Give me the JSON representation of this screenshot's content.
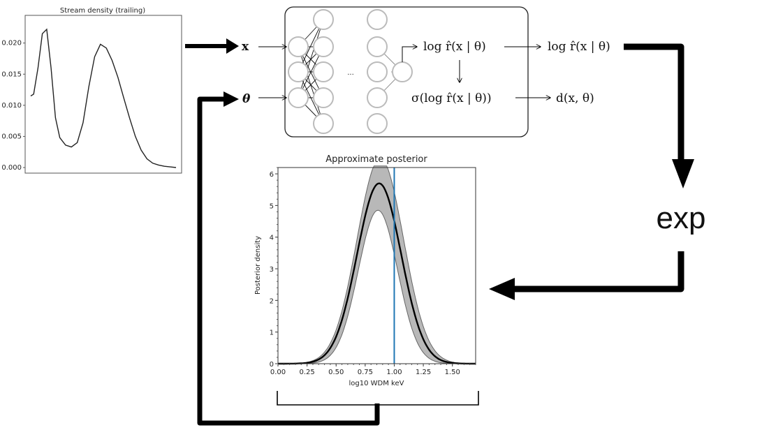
{
  "stream_chart": {
    "type": "line",
    "title": "Stream density (trailing)",
    "ylim": [
      0,
      0.024
    ],
    "ytick_labels": [
      "0.000",
      "0.005",
      "0.010",
      "0.015",
      "0.020"
    ],
    "yticks": [
      0.0,
      0.005,
      0.01,
      0.015,
      0.02
    ],
    "xlim": [
      0,
      1
    ],
    "series": [
      {
        "x": [
          0.0,
          0.02,
          0.05,
          0.08,
          0.11,
          0.14,
          0.17,
          0.2,
          0.24,
          0.28,
          0.32,
          0.36,
          0.4,
          0.44,
          0.48,
          0.52,
          0.56,
          0.6,
          0.64,
          0.68,
          0.72,
          0.76,
          0.8,
          0.84,
          0.88,
          0.92,
          0.96,
          1.0
        ],
        "y": [
          0.0115,
          0.0118,
          0.016,
          0.0215,
          0.0222,
          0.016,
          0.008,
          0.0048,
          0.0036,
          0.0033,
          0.004,
          0.0072,
          0.013,
          0.0178,
          0.0198,
          0.0192,
          0.0172,
          0.0145,
          0.0112,
          0.008,
          0.005,
          0.0028,
          0.0014,
          0.0007,
          0.0004,
          0.0002,
          0.0001,
          0.0
        ]
      }
    ]
  },
  "network": {
    "input_x": "x",
    "input_theta": "θ",
    "ellipsis": "...",
    "output_log_ratio": "log r̂(x | θ)",
    "output_sigma": "σ(log r̂(x | θ))",
    "right_log_ratio": "log r̂(x | θ)",
    "right_d": "d(x, θ)"
  },
  "exp_label": "exp",
  "posterior_chart": {
    "type": "line",
    "title": "Approximate posterior",
    "xlabel": "log10 WDM keV",
    "ylabel": "Posterior density",
    "xlim": [
      0,
      1.7
    ],
    "ylim": [
      0,
      6.2
    ],
    "xticks": [
      0,
      0.25,
      0.5,
      0.75,
      1.0,
      1.25,
      1.5
    ],
    "xtick_labels": [
      "0.00",
      "0.25",
      "0.50",
      "0.75",
      "1.00",
      "1.25",
      "1.50"
    ],
    "yticks": [
      0,
      1,
      2,
      3,
      4,
      5,
      6
    ],
    "ytick_labels": [
      "0",
      "1",
      "2",
      "3",
      "4",
      "5",
      "6"
    ],
    "truth_line_x": 1.0,
    "mean_peak": {
      "mu": 0.87,
      "sigma": 0.19,
      "height": 5.7
    },
    "upper_band": {
      "mu": 0.88,
      "sigma": 0.2,
      "height": 6.5
    },
    "lower_band": {
      "mu": 0.86,
      "sigma": 0.17,
      "height": 4.85
    },
    "colors": {
      "band": "#b8b8b8",
      "mean": "#000000",
      "truth": "#1f77b4"
    }
  }
}
